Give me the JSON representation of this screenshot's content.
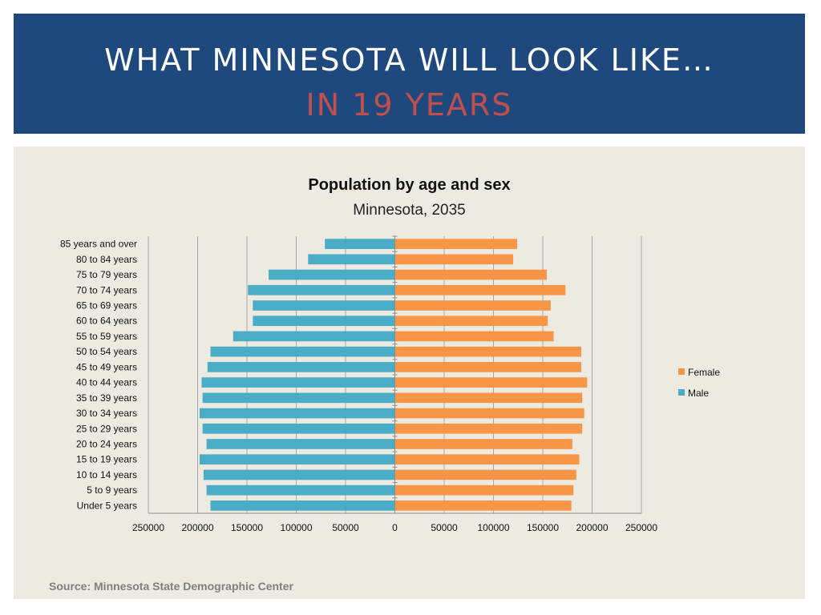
{
  "header": {
    "title_line1": "WHAT MINNESOTA WILL LOOK LIKE…",
    "title_line2": "IN 19 YEARS"
  },
  "footer": {
    "source": "Source: Minnesota State Demographic Center"
  },
  "colors": {
    "header_bg": "#1f497d",
    "accent_red": "#c0504d",
    "male": "#4bacc6",
    "female": "#f79646",
    "panel_bg": "#edeae1"
  },
  "chart_data": {
    "type": "bar",
    "orientation": "horizontal",
    "title": "Population by age and sex",
    "subtitle": "Minnesota, 2035",
    "categories": [
      "Under 5 years",
      "5 to 9 years",
      "10 to 14 years",
      "15 to 19 years",
      "20 to 24 years",
      "25 to 29 years",
      "30 to 34 years",
      "35 to 39 years",
      "40 to 44 years",
      "45 to 49 years",
      "50 to 54 years",
      "55 to 59 years",
      "60 to 64 years",
      "65 to 69 years",
      "70 to 74 years",
      "75 to 79 years",
      "80 to 84 years",
      "85 years and over"
    ],
    "series": [
      {
        "name": "Female",
        "values": [
          179000,
          181000,
          184000,
          187000,
          180000,
          190000,
          192000,
          190000,
          195000,
          189000,
          189000,
          161000,
          155000,
          158000,
          173000,
          154000,
          120000,
          124000
        ]
      },
      {
        "name": "Male",
        "values": [
          -187000,
          -191000,
          -194000,
          -198000,
          -191000,
          -195000,
          -198000,
          -195000,
          -196000,
          -190000,
          -187000,
          -164000,
          -144000,
          -144000,
          -149000,
          -128000,
          -88000,
          -71000
        ]
      }
    ],
    "xlim": [
      -250000,
      250000
    ],
    "xticks": [
      "250000",
      "200000",
      "150000",
      "100000",
      "50000",
      "0",
      "50000",
      "100000",
      "150000",
      "200000",
      "250000"
    ],
    "legend": [
      "Female",
      "Male"
    ],
    "legend_position": "right",
    "grid": true
  }
}
